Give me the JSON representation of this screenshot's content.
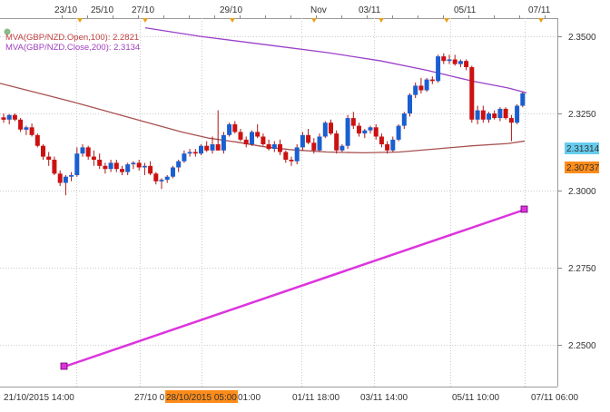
{
  "colors": {
    "bull": "#1a5fd0",
    "bear": "#cc1111",
    "wick": "#aa1515",
    "mva100": "#a85050",
    "mva200": "#9a40c8",
    "trendline": "#dd33dd",
    "grid": "#cccccc",
    "event_marker": "#e8a020",
    "price_badge_blue": "#66ccee",
    "price_badge_orange": "#ff8c1a",
    "date_badge": "#ff8c1a"
  },
  "indicators": [
    {
      "label": "MVA(GBP/NZD.Open,100): 2.2821",
      "color": "#c04040"
    },
    {
      "label": "MVA(GBP/NZD.Close,200): 2.3134",
      "color": "#a040c0"
    }
  ],
  "top_date_labels": [
    "23/10",
    "25/10",
    "27/10",
    "29/10",
    "Nov",
    "03/11",
    "05/11",
    "07/11"
  ],
  "price_labels": [
    "2.3500",
    "2.3250",
    "2.3000",
    "2.2750",
    "2.2500"
  ],
  "price_badges": [
    "2.31314",
    "2.30737"
  ],
  "bottom_labels": [
    "21/10/2015 14:00",
    "27/10 0",
    "28/10/2015 05:00",
    "01:00",
    "01/11 18:00",
    "03/11 14:00",
    "05/11 10:00",
    "07/11 06:00"
  ],
  "chart_data": {
    "type": "candlestick",
    "instrument": "GBP/NZD",
    "ylim": [
      2.242,
      2.356
    ],
    "last_close": 2.31314,
    "ma100_last": 2.2821,
    "ma200_last": 2.3134
  }
}
